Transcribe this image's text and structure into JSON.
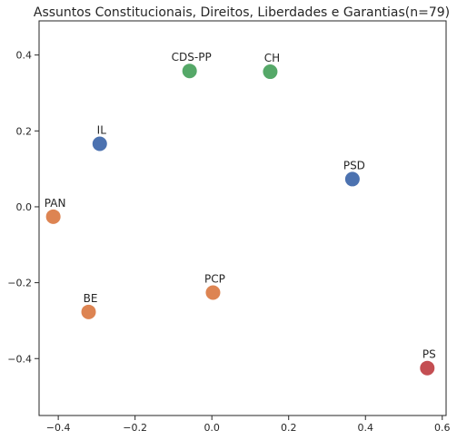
{
  "chart_data": {
    "type": "scatter",
    "title": "Assuntos Constitucionais, Direitos, Liberdades e Garantias(n=79)",
    "xlabel": "",
    "ylabel": "",
    "xlim": [
      -0.45,
      0.61
    ],
    "ylim": [
      -0.55,
      0.49
    ],
    "xticks": [
      -0.4,
      -0.2,
      0.0,
      0.2,
      0.4,
      0.6
    ],
    "xtick_labels": [
      "−0.4",
      "−0.2",
      "0.0",
      "0.2",
      "0.4",
      "0.6"
    ],
    "yticks": [
      0.4,
      0.2,
      0.0,
      -0.2,
      -0.4
    ],
    "ytick_labels": [
      "0.4",
      "0.2",
      "0.0",
      "−0.2",
      "−0.4"
    ],
    "grid": false,
    "points": [
      {
        "label": "CDS-PP",
        "x": -0.058,
        "y": 0.358,
        "color": "#55a868"
      },
      {
        "label": "CH",
        "x": 0.152,
        "y": 0.356,
        "color": "#55a868"
      },
      {
        "label": "IL",
        "x": -0.292,
        "y": 0.166,
        "color": "#4c72b0"
      },
      {
        "label": "PSD",
        "x": 0.366,
        "y": 0.073,
        "color": "#4c72b0"
      },
      {
        "label": "PAN",
        "x": -0.413,
        "y": -0.026,
        "color": "#dd8452"
      },
      {
        "label": "PCP",
        "x": 0.003,
        "y": -0.226,
        "color": "#dd8452"
      },
      {
        "label": "BE",
        "x": -0.321,
        "y": -0.277,
        "color": "#dd8452"
      },
      {
        "label": "PS",
        "x": 0.561,
        "y": -0.425,
        "color": "#c44e52"
      }
    ]
  }
}
